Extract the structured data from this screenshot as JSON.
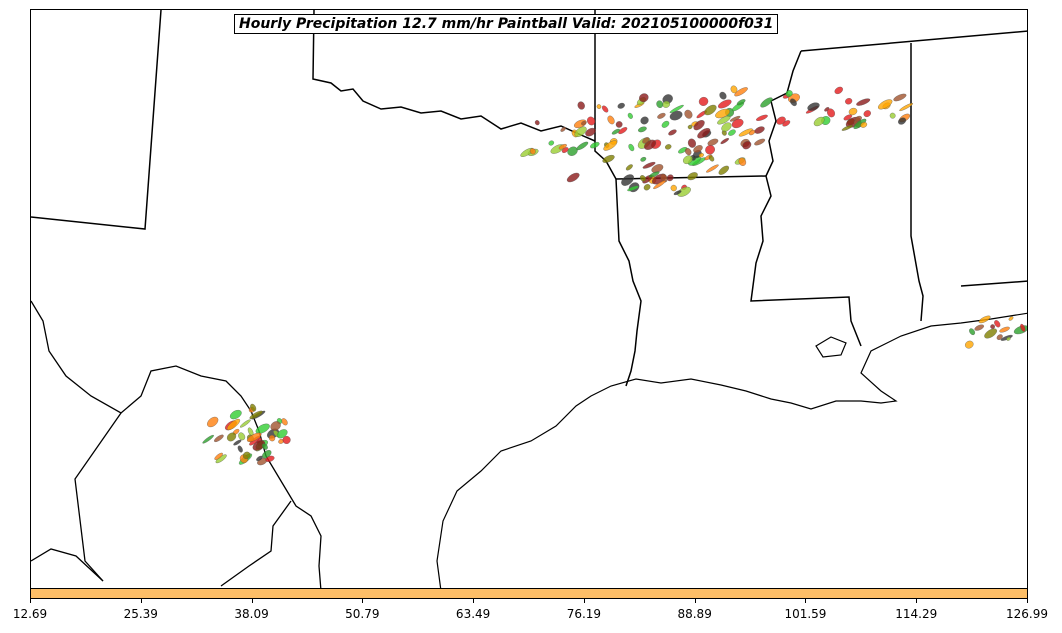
{
  "title": "Hourly Precipitation 12.7 mm/hr Paintball Valid: 202105100000f031",
  "colorbar": {
    "color": "#fdbe67",
    "ticks": [
      "12.69",
      "25.39",
      "38.09",
      "50.79",
      "63.49",
      "76.19",
      "88.89",
      "101.59",
      "114.29",
      "126.99"
    ]
  },
  "member_colors": [
    "#8b1a1a",
    "#e41a1c",
    "#ff7f0e",
    "#ffa500",
    "#2ca02c",
    "#32cd32",
    "#808000",
    "#9acd32",
    "#333333",
    "#a0522d"
  ]
}
